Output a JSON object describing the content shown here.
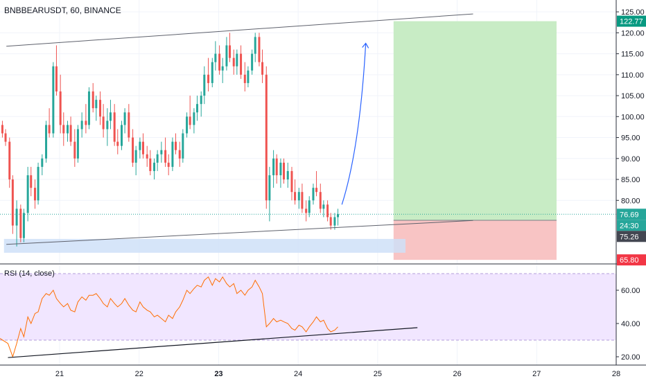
{
  "header": {
    "title": "BNBBEARUSDT, 60, BINANCE"
  },
  "rsi_panel": {
    "title": "RSI (14, close)"
  },
  "chart_data": [
    {
      "type": "candlestick",
      "symbol": "BNBBEARUSDT",
      "interval": "60",
      "exchange": "BINANCE",
      "y_ticks": [
        "125.00",
        "120.00",
        "115.00",
        "110.00",
        "105.00",
        "100.00",
        "95.00",
        "90.00",
        "85.00",
        "80.00"
      ],
      "ylim": [
        65,
        127
      ],
      "x_ticks": [
        "21",
        "22",
        "23",
        "24",
        "25",
        "26",
        "27",
        "28"
      ],
      "x_range": [
        20.25,
        28.0
      ],
      "ohlc": [
        [
          20.28,
          98,
          99,
          95,
          96
        ],
        [
          20.32,
          96,
          97,
          93,
          94
        ],
        [
          20.37,
          94,
          95,
          83,
          85
        ],
        [
          20.41,
          85,
          86,
          72,
          74
        ],
        [
          20.46,
          74,
          80,
          69,
          78
        ],
        [
          20.51,
          78,
          79,
          70,
          71
        ],
        [
          20.55,
          71,
          78,
          70,
          77
        ],
        [
          20.6,
          77,
          88,
          75,
          86
        ],
        [
          20.64,
          86,
          88,
          81,
          83
        ],
        [
          20.69,
          83,
          85,
          78,
          80
        ],
        [
          20.73,
          80,
          89,
          79,
          88
        ],
        [
          20.78,
          88,
          91,
          86,
          90
        ],
        [
          20.83,
          90,
          99,
          89,
          98
        ],
        [
          20.87,
          98,
          102,
          95,
          96
        ],
        [
          20.92,
          96,
          113,
          95,
          112
        ],
        [
          20.96,
          112,
          117,
          105,
          106
        ],
        [
          21.01,
          106,
          110,
          96,
          98
        ],
        [
          21.05,
          98,
          101,
          93,
          96
        ],
        [
          21.1,
          96,
          99,
          94,
          98
        ],
        [
          21.14,
          98,
          100,
          93,
          94
        ],
        [
          21.19,
          94,
          97,
          88,
          90
        ],
        [
          21.23,
          90,
          98,
          89,
          97
        ],
        [
          21.28,
          97,
          101,
          95,
          99
        ],
        [
          21.33,
          99,
          103,
          96,
          98
        ],
        [
          21.37,
          98,
          107,
          97,
          106
        ],
        [
          21.42,
          106,
          108,
          101,
          102
        ],
        [
          21.46,
          102,
          105,
          99,
          104
        ],
        [
          21.51,
          104,
          106,
          98,
          100
        ],
        [
          21.55,
          100,
          103,
          95,
          97
        ],
        [
          21.6,
          97,
          102,
          93,
          99
        ],
        [
          21.64,
          99,
          104,
          97,
          101
        ],
        [
          21.69,
          101,
          103,
          93,
          94
        ],
        [
          21.73,
          94,
          97,
          91,
          93
        ],
        [
          21.78,
          93,
          99,
          92,
          98
        ],
        [
          21.82,
          98,
          102,
          96,
          101
        ],
        [
          21.87,
          101,
          103,
          94,
          95
        ],
        [
          21.92,
          95,
          97,
          88,
          89
        ],
        [
          21.96,
          89,
          93,
          86,
          92
        ],
        [
          22.01,
          92,
          95,
          90,
          94
        ],
        [
          22.05,
          94,
          96,
          90,
          91
        ],
        [
          22.1,
          91,
          93,
          88,
          90
        ],
        [
          22.14,
          90,
          92,
          86,
          87
        ],
        [
          22.19,
          87,
          90,
          85,
          89
        ],
        [
          22.23,
          89,
          92,
          87,
          91
        ],
        [
          22.28,
          91,
          94,
          89,
          92
        ],
        [
          22.33,
          92,
          95,
          88,
          89
        ],
        [
          22.37,
          89,
          91,
          86,
          88
        ],
        [
          22.42,
          88,
          95,
          87,
          94
        ],
        [
          22.46,
          94,
          96,
          91,
          92
        ],
        [
          22.51,
          92,
          94,
          88,
          90
        ],
        [
          22.55,
          90,
          97,
          89,
          96
        ],
        [
          22.6,
          96,
          101,
          95,
          100
        ],
        [
          22.64,
          100,
          105,
          97,
          98
        ],
        [
          22.69,
          98,
          102,
          96,
          101
        ],
        [
          22.73,
          101,
          105,
          99,
          103
        ],
        [
          22.78,
          103,
          106,
          100,
          105
        ],
        [
          22.82,
          105,
          112,
          103,
          110
        ],
        [
          22.87,
          110,
          114,
          106,
          108
        ],
        [
          22.92,
          108,
          114,
          107,
          113
        ],
        [
          22.96,
          113,
          118,
          111,
          115
        ],
        [
          23.01,
          115,
          117,
          110,
          111
        ],
        [
          23.05,
          111,
          114,
          108,
          112
        ],
        [
          23.1,
          112,
          119,
          111,
          117
        ],
        [
          23.14,
          117,
          120,
          113,
          114
        ],
        [
          23.19,
          114,
          116,
          110,
          112
        ],
        [
          23.23,
          112,
          116,
          110,
          115
        ],
        [
          23.28,
          115,
          117,
          109,
          110
        ],
        [
          23.33,
          110,
          113,
          106,
          108
        ],
        [
          23.37,
          108,
          112,
          107,
          111
        ],
        [
          23.42,
          111,
          116,
          110,
          115
        ],
        [
          23.46,
          115,
          120,
          113,
          119
        ],
        [
          23.51,
          119,
          120,
          112,
          113
        ],
        [
          23.55,
          113,
          116,
          108,
          110
        ],
        [
          23.6,
          110,
          112,
          78,
          80
        ],
        [
          23.64,
          80,
          88,
          75,
          86
        ],
        [
          23.69,
          86,
          92,
          83,
          90
        ],
        [
          23.73,
          90,
          91,
          84,
          86
        ],
        [
          23.78,
          86,
          90,
          83,
          89
        ],
        [
          23.82,
          89,
          90,
          84,
          85
        ],
        [
          23.87,
          85,
          89,
          83,
          87
        ],
        [
          23.92,
          87,
          88,
          80,
          82
        ],
        [
          23.96,
          82,
          85,
          79,
          80
        ],
        [
          24.01,
          80,
          83,
          78,
          82
        ],
        [
          24.05,
          82,
          84,
          77,
          78
        ],
        [
          24.1,
          78,
          80,
          75,
          77
        ],
        [
          24.14,
          77,
          81,
          76,
          80
        ],
        [
          24.19,
          80,
          84,
          79,
          83
        ],
        [
          24.23,
          83,
          87,
          81,
          82
        ],
        [
          24.28,
          82,
          84,
          77,
          78
        ],
        [
          24.32,
          78,
          80,
          76,
          79
        ],
        [
          24.37,
          79,
          80,
          75,
          76
        ],
        [
          24.41,
          76,
          77,
          73,
          74
        ],
        [
          24.46,
          74,
          77,
          73,
          76
        ],
        [
          24.5,
          76,
          78,
          74,
          76.7
        ]
      ],
      "drawings": {
        "channel_upper": [
          [
            20.33,
            116.8
          ],
          [
            26.2,
            124.5
          ]
        ],
        "channel_lower": [
          [
            20.33,
            69.5
          ],
          [
            26.2,
            75.2
          ]
        ],
        "forecast_arrow": [
          [
            24.55,
            79
          ],
          [
            24.85,
            117.5
          ]
        ],
        "long_position": {
          "x_start": 25.2,
          "x_end": 27.25,
          "entry": 75.26,
          "target": 122.77,
          "stop": 65.8
        },
        "support_zone": {
          "x_start": 20.3,
          "x_end": 25.35,
          "y_low": 67.5,
          "y_high": 70.8
        }
      },
      "price_labels": [
        {
          "text": "122.77",
          "value": 122.77,
          "color": "#089981"
        },
        {
          "text": "76.69",
          "value": 76.69,
          "color": "#26a69a"
        },
        {
          "text": "24:30",
          "value": 75.26,
          "color": "#26a69a",
          "offset": 1
        },
        {
          "text": "75.26",
          "value": 75.26,
          "color": "#434651",
          "offset": 2
        },
        {
          "text": "65.80",
          "value": 65.8,
          "color": "#f23645"
        }
      ],
      "last_price": 76.69,
      "colors": {
        "up": "#26a69a",
        "down": "#ef5350",
        "profit_zone": "#c8ecc5",
        "loss_zone": "#f8c4c4",
        "zone": "#cfe0f8",
        "arrow": "#2962ff"
      }
    },
    {
      "type": "line",
      "indicator": "RSI (14, close)",
      "y_ticks": [
        "60.00",
        "40.00",
        "20.00"
      ],
      "ylim": [
        15,
        75
      ],
      "bands": [
        30,
        70
      ],
      "series": [
        {
          "values": [
            [
              20.25,
              31
            ],
            [
              20.35,
              28
            ],
            [
              20.41,
              20
            ],
            [
              20.46,
              28
            ],
            [
              20.51,
              37
            ],
            [
              20.55,
              32
            ],
            [
              20.6,
              44
            ],
            [
              20.64,
              40
            ],
            [
              20.69,
              46
            ],
            [
              20.73,
              47
            ],
            [
              20.78,
              55
            ],
            [
              20.83,
              58
            ],
            [
              20.87,
              57
            ],
            [
              20.92,
              60
            ],
            [
              20.96,
              55
            ],
            [
              21.01,
              52
            ],
            [
              21.05,
              50
            ],
            [
              21.1,
              52
            ],
            [
              21.14,
              48
            ],
            [
              21.19,
              47
            ],
            [
              21.23,
              53
            ],
            [
              21.28,
              56
            ],
            [
              21.33,
              54
            ],
            [
              21.37,
              57
            ],
            [
              21.42,
              57
            ],
            [
              21.46,
              58
            ],
            [
              21.51,
              55
            ],
            [
              21.55,
              52
            ],
            [
              21.6,
              50
            ],
            [
              21.64,
              55
            ],
            [
              21.69,
              52
            ],
            [
              21.73,
              50
            ],
            [
              21.78,
              52
            ],
            [
              21.82,
              55
            ],
            [
              21.87,
              51
            ],
            [
              21.92,
              48
            ],
            [
              21.96,
              47
            ],
            [
              22.01,
              53
            ],
            [
              22.05,
              50
            ],
            [
              22.1,
              48
            ],
            [
              22.14,
              47
            ],
            [
              22.19,
              44
            ],
            [
              22.23,
              45
            ],
            [
              22.28,
              43
            ],
            [
              22.33,
              41
            ],
            [
              22.37,
              45
            ],
            [
              22.42,
              43
            ],
            [
              22.46,
              47
            ],
            [
              22.51,
              50
            ],
            [
              22.55,
              54
            ],
            [
              22.6,
              60
            ],
            [
              22.64,
              58
            ],
            [
              22.69,
              61
            ],
            [
              22.73,
              63
            ],
            [
              22.78,
              62
            ],
            [
              22.82,
              66
            ],
            [
              22.87,
              68
            ],
            [
              22.92,
              63
            ],
            [
              22.96,
              67
            ],
            [
              23.01,
              65
            ],
            [
              23.05,
              68
            ],
            [
              23.1,
              64
            ],
            [
              23.14,
              62
            ],
            [
              23.19,
              64
            ],
            [
              23.23,
              58
            ],
            [
              23.28,
              60
            ],
            [
              23.33,
              57
            ],
            [
              23.37,
              60
            ],
            [
              23.42,
              62
            ],
            [
              23.46,
              66
            ],
            [
              23.51,
              62
            ],
            [
              23.55,
              58
            ],
            [
              23.6,
              38
            ],
            [
              23.64,
              40
            ],
            [
              23.69,
              43
            ],
            [
              23.73,
              41
            ],
            [
              23.78,
              42
            ],
            [
              23.82,
              41
            ],
            [
              23.87,
              40
            ],
            [
              23.92,
              37
            ],
            [
              23.96,
              36
            ],
            [
              24.01,
              39
            ],
            [
              24.05,
              38
            ],
            [
              24.1,
              35
            ],
            [
              24.14,
              38
            ],
            [
              24.19,
              41
            ],
            [
              24.23,
              44
            ],
            [
              24.28,
              41
            ],
            [
              24.32,
              42
            ],
            [
              24.37,
              37
            ],
            [
              24.41,
              35
            ],
            [
              24.46,
              36
            ],
            [
              24.5,
              38
            ]
          ]
        }
      ],
      "trendline": [
        [
          20.35,
          19.5
        ],
        [
          25.5,
          37.5
        ]
      ],
      "colors": {
        "line": "#ff6d00",
        "band_fill": "#f1e6ff",
        "band_line": "#b39ddb"
      }
    }
  ]
}
